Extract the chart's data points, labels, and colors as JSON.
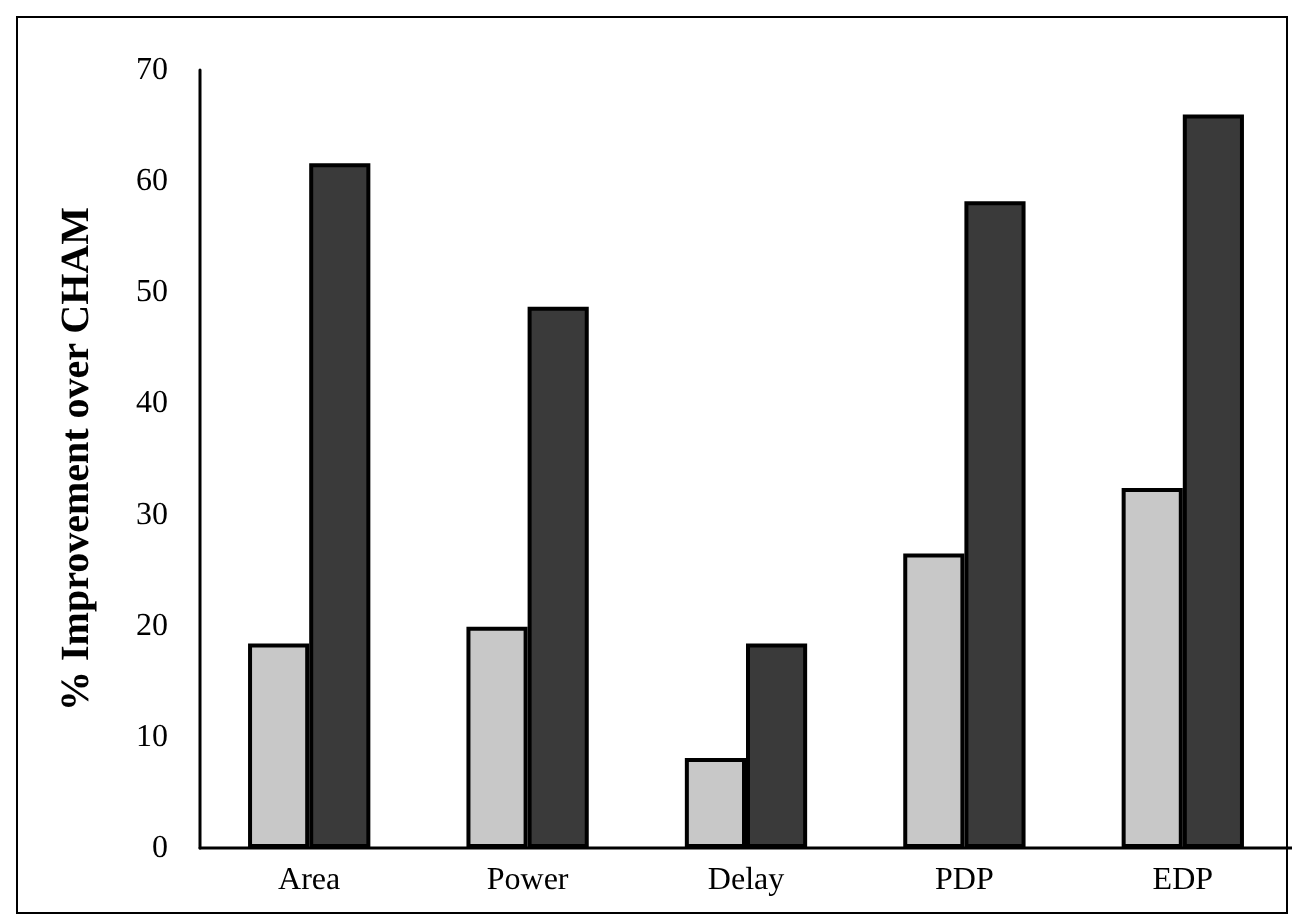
{
  "chart_data": {
    "type": "bar",
    "ylabel": "% Improvement over CHAM",
    "categories": [
      "Area",
      "Power",
      "Delay",
      "PDP",
      "EDP"
    ],
    "series": [
      {
        "color": "#c8c8c8",
        "values": [
          18.4,
          19.9,
          8.1,
          26.5,
          32.4
        ]
      },
      {
        "color": "#3a3a3a",
        "values": [
          61.6,
          48.7,
          18.4,
          58.2,
          66.0
        ]
      }
    ],
    "ylim": [
      0,
      70
    ],
    "yticks": [
      0,
      10,
      20,
      30,
      40,
      50,
      60,
      70
    ],
    "grid": false
  }
}
